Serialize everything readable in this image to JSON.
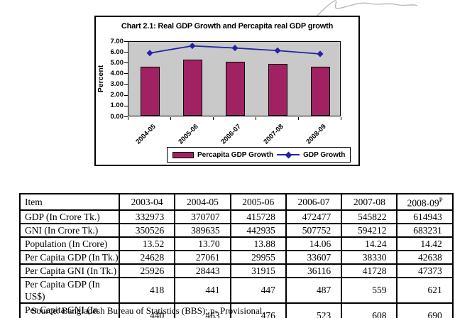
{
  "chart_data": {
    "type": "bar",
    "title": "Chart 2.1: Real GDP Growth and Percapita real GDP growth",
    "categories": [
      "2004-05",
      "2005-06",
      "2006-07",
      "2007-08",
      "2008-09"
    ],
    "series": [
      {
        "name": "Percapita GDP Growth",
        "type": "bar",
        "color": "#A02262",
        "values": [
          4.55,
          5.22,
          5.03,
          4.81,
          4.55
        ]
      },
      {
        "name": "GDP Growth",
        "type": "line",
        "color": "#2323A5",
        "values": [
          5.96,
          6.63,
          6.43,
          6.19,
          5.88
        ]
      }
    ],
    "xlabel": "",
    "ylabel": "Percent",
    "ylim": [
      0,
      7
    ],
    "yticks": [
      "0.00",
      "1.00",
      "2.00",
      "3.00",
      "4.00",
      "5.00",
      "6.00",
      "7.00"
    ],
    "grid": false,
    "legend_position": "bottom-inside",
    "plot_background": "#C9C9C9",
    "axis_color": "#000000"
  },
  "table": {
    "columns": [
      {
        "label": "Item"
      },
      {
        "label": "2003-04"
      },
      {
        "label": "2004-05"
      },
      {
        "label": "2005-06"
      },
      {
        "label": "2006-07"
      },
      {
        "label": "2007-08"
      },
      {
        "label": "2008-09",
        "sup": "P"
      }
    ],
    "rows": [
      {
        "label": "GDP (In Crore Tk.)",
        "values": [
          "332973",
          "370707",
          "415728",
          "472477",
          "545822",
          "614943"
        ]
      },
      {
        "label": "GNI (In Crore Tk.)",
        "values": [
          "350526",
          "389635",
          "442935",
          "507752",
          "594212",
          "683231"
        ]
      },
      {
        "label": "Population (In Crore)",
        "values": [
          "13.52",
          "13.70",
          "13.88",
          "14.06",
          "14.24",
          "14.42"
        ]
      },
      {
        "label": "Per Capita GDP (In Tk.)",
        "values": [
          "24628",
          "27061",
          "29955",
          "33607",
          "38330",
          "42638"
        ]
      },
      {
        "label": "Per Capita GNI (In Tk.)",
        "values": [
          "25926",
          "28443",
          "31915",
          "36116",
          "41728",
          "47373"
        ]
      },
      {
        "label": "Per Capita GDP (In US$)",
        "values": [
          "418",
          "441",
          "447",
          "487",
          "559",
          "621"
        ]
      },
      {
        "label": "Per Capita GNI (In US$)",
        "values": [
          "440",
          "463",
          "476",
          "523",
          "608",
          "690"
        ]
      }
    ]
  },
  "source_note": "Source: Bangladesh Bureau of Statistics (BBS); p- Provisional."
}
